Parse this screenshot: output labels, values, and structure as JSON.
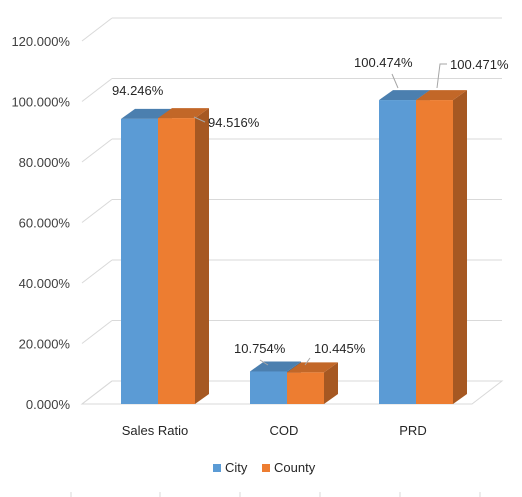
{
  "chart_data": {
    "type": "bar",
    "style": "3d-clustered-column",
    "categories": [
      "Sales Ratio",
      "COD",
      "PRD"
    ],
    "series": [
      {
        "name": "City",
        "values": [
          94.246,
          10.754,
          100.474
        ],
        "labels": [
          "94.246%",
          "10.754%",
          "100.474%"
        ],
        "color": "#5B9BD5"
      },
      {
        "name": "County",
        "values": [
          94.516,
          10.445,
          100.471
        ],
        "labels": [
          "94.516%",
          "10.445%",
          "100.471%"
        ],
        "color": "#ED7D31"
      }
    ],
    "ylim": [
      0,
      120
    ],
    "yticks": [
      0,
      20,
      40,
      60,
      80,
      100,
      120
    ],
    "ytick_labels": [
      "0.000%",
      "20.000%",
      "40.000%",
      "60.000%",
      "80.000%",
      "100.000%",
      "120.000%"
    ],
    "title": "",
    "xlabel": "",
    "ylabel": "",
    "grid": true,
    "legend_position": "bottom"
  }
}
